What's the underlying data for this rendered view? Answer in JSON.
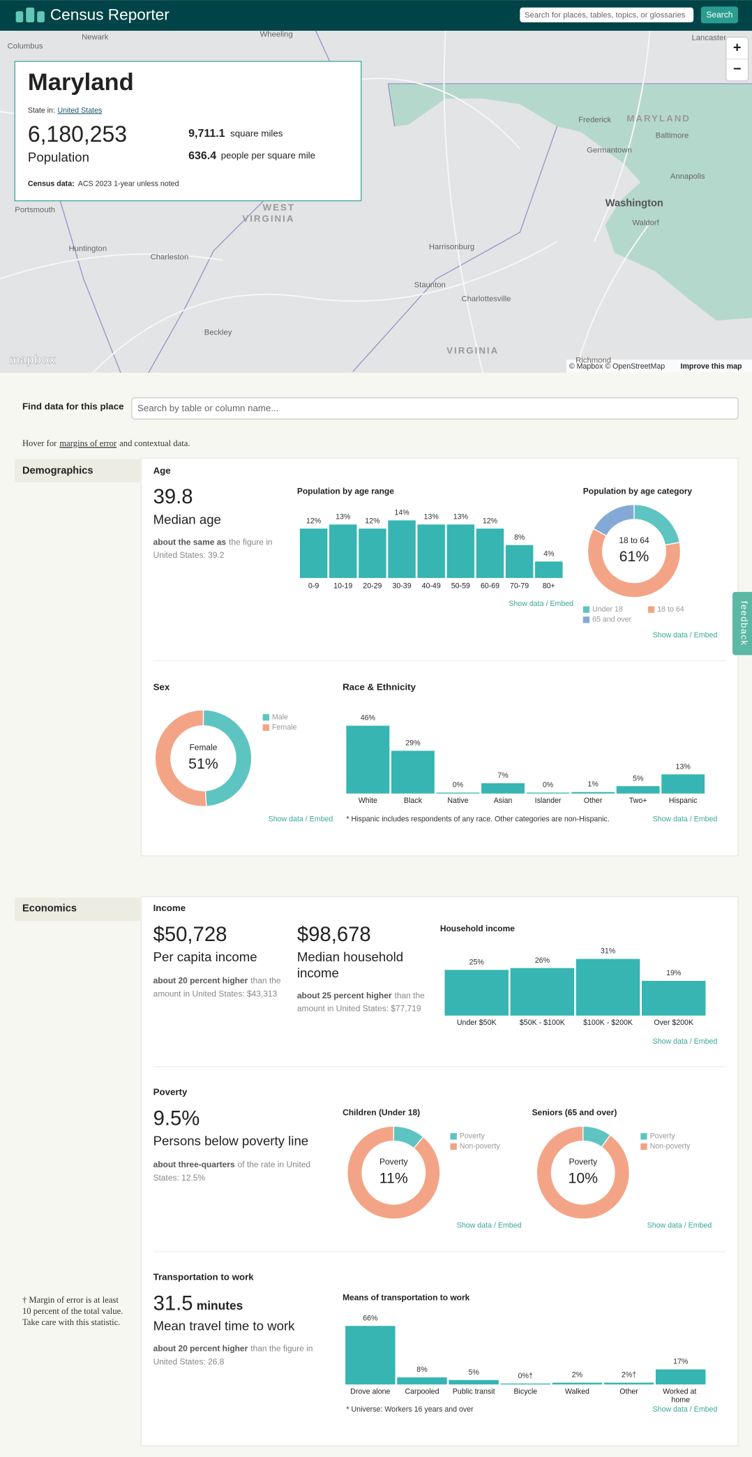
{
  "header": {
    "brand": "Census Reporter",
    "search_placeholder": "Search for places, tables, topics, or glossaries",
    "search_button": "Search"
  },
  "map": {
    "labels": [
      "Columbus",
      "Newark",
      "Wheeling",
      "Lancaster",
      "Frederick",
      "MARYLAND",
      "Baltimore",
      "Germantown",
      "Annapolis",
      "Washington",
      "Waldorf",
      "Portsmouth",
      "WEST",
      "VIRGINIA",
      "Huntington",
      "Charleston",
      "Harrisonburg",
      "Staunton",
      "Charlottesville",
      "Beckley",
      "VIRGINIA",
      "Richmond"
    ],
    "zoom_in": "+",
    "zoom_out": "−",
    "logo": "mapbox",
    "attribution": "© Mapbox © OpenStreetMap",
    "improve": "Improve this map"
  },
  "profile": {
    "name": "Maryland",
    "state_in_label": "State in:",
    "state_in": "United States",
    "population": "6,180,253",
    "population_label": "Population",
    "area": "9,711.1",
    "area_label": "square miles",
    "density": "636.4",
    "density_label": "people per square mile",
    "census_label": "Census data:",
    "census_value": "ACS 2023 1-year unless noted"
  },
  "find": {
    "label": "Find data for this place",
    "placeholder": "Search by table or column name..."
  },
  "hover_note": {
    "before": "Hover for",
    "link": "margins of error",
    "after": "and contextual data."
  },
  "feedback": "feedback",
  "demographics": {
    "title": "Demographics",
    "age": {
      "title": "Age",
      "median": "39.8",
      "median_label": "Median age",
      "comparison": {
        "emph": "about the same as",
        "rest": "the figure in",
        "line2": "United States: 39.2"
      },
      "by_range": {
        "type": "bar",
        "title": "Population by age range",
        "categories": [
          "0-9",
          "10-19",
          "20-29",
          "30-39",
          "40-49",
          "50-59",
          "60-69",
          "70-79",
          "80+"
        ],
        "values": [
          12,
          13,
          12,
          14,
          13,
          13,
          12,
          8,
          4
        ],
        "value_labels": [
          "12%",
          "13%",
          "12%",
          "14%",
          "13%",
          "13%",
          "12%",
          "8%",
          "4%"
        ],
        "color": "#36b5b2",
        "links": "Show data / Embed"
      },
      "by_category": {
        "type": "donut",
        "title": "Population by age category",
        "center_label": "18 to 64",
        "center_value": "61%",
        "series": [
          {
            "name": "Under 18",
            "color": "#5ec4c1",
            "value": 22
          },
          {
            "name": "18 to 64",
            "color": "#f4a486",
            "value": 61
          },
          {
            "name": "65 and over",
            "color": "#84a9d7",
            "value": 17
          }
        ],
        "links": "Show data / Embed"
      }
    },
    "sex": {
      "type": "donut",
      "title": "Sex",
      "center_label": "Female",
      "center_value": "51%",
      "series": [
        {
          "name": "Male",
          "color": "#5ec4c1",
          "value": 49
        },
        {
          "name": "Female",
          "color": "#f4a486",
          "value": 51
        }
      ],
      "links": "Show data / Embed"
    },
    "race": {
      "type": "bar",
      "title": "Race & Ethnicity",
      "categories": [
        "White",
        "Black",
        "Native",
        "Asian",
        "Islander",
        "Other",
        "Two+",
        "Hispanic"
      ],
      "values": [
        46,
        29,
        0,
        7,
        0,
        1,
        5,
        13
      ],
      "value_labels": [
        "46%",
        "29%",
        "0%",
        "7%",
        "0%",
        "1%",
        "5%",
        "13%"
      ],
      "color": "#36b5b2",
      "note": "* Hispanic includes respondents of any race. Other categories are non-Hispanic.",
      "links": "Show data / Embed"
    }
  },
  "economics": {
    "title": "Economics",
    "income": {
      "title": "Income",
      "per_capita": "$50,728",
      "per_capita_label": "Per capita income",
      "per_capita_comparison": {
        "emph": "about 20 percent higher",
        "rest": "than the",
        "line2": "amount in United States: $43,313"
      },
      "median_household": "$98,678",
      "median_household_label": [
        "Median household",
        "income"
      ],
      "median_household_comparison": {
        "emph": "about 25 percent higher",
        "rest": "than the",
        "line2": "amount in United States: $77,719"
      },
      "household": {
        "type": "bar",
        "title": "Household income",
        "categories": [
          "Under $50K",
          "$50K - $100K",
          "$100K - $200K",
          "Over $200K"
        ],
        "values": [
          25,
          26,
          31,
          19
        ],
        "value_labels": [
          "25%",
          "26%",
          "31%",
          "19%"
        ],
        "color": "#36b5b2",
        "links": "Show data / Embed"
      }
    },
    "poverty": {
      "title": "Poverty",
      "rate": "9.5%",
      "rate_label": "Persons below poverty line",
      "comparison": {
        "emph": "about three-quarters",
        "rest": "of the rate in United",
        "line2": "States: 12.5%"
      },
      "children": {
        "type": "donut",
        "title": "Children (Under 18)",
        "center_label": "Poverty",
        "center_value": "11%",
        "series": [
          {
            "name": "Poverty",
            "color": "#5ec4c1",
            "value": 11
          },
          {
            "name": "Non-poverty",
            "color": "#f4a486",
            "value": 89
          }
        ],
        "links": "Show data / Embed"
      },
      "seniors": {
        "type": "donut",
        "title": "Seniors (65 and over)",
        "center_label": "Poverty",
        "center_value": "10%",
        "series": [
          {
            "name": "Poverty",
            "color": "#5ec4c1",
            "value": 10
          },
          {
            "name": "Non-poverty",
            "color": "#f4a486",
            "value": 90
          }
        ],
        "links": "Show data / Embed"
      }
    },
    "transportation": {
      "title": "Transportation to work",
      "travel_time": "31.5",
      "travel_unit": "minutes",
      "travel_label": "Mean travel time to work",
      "comparison": {
        "emph": "about 20 percent higher",
        "rest": "than the figure in",
        "line2": "United States: 26.8"
      },
      "means": {
        "type": "bar",
        "title": "Means of transportation to work",
        "categories": [
          "Drove alone",
          "Carpooled",
          "Public transit",
          "Bicycle",
          "Walked",
          "Other",
          "Worked at home"
        ],
        "values": [
          66,
          8,
          5,
          0,
          2,
          2,
          17
        ],
        "value_labels": [
          "66%",
          "8%",
          "5%",
          "0%†",
          "2%",
          "2%†",
          "17%"
        ],
        "color": "#36b5b2",
        "note": "* Universe: Workers 16 years and over",
        "links": "Show data / Embed"
      }
    },
    "moe_note": [
      "† Margin of error is at least",
      "10 percent of the total value.",
      "Take care with this statistic."
    ]
  }
}
